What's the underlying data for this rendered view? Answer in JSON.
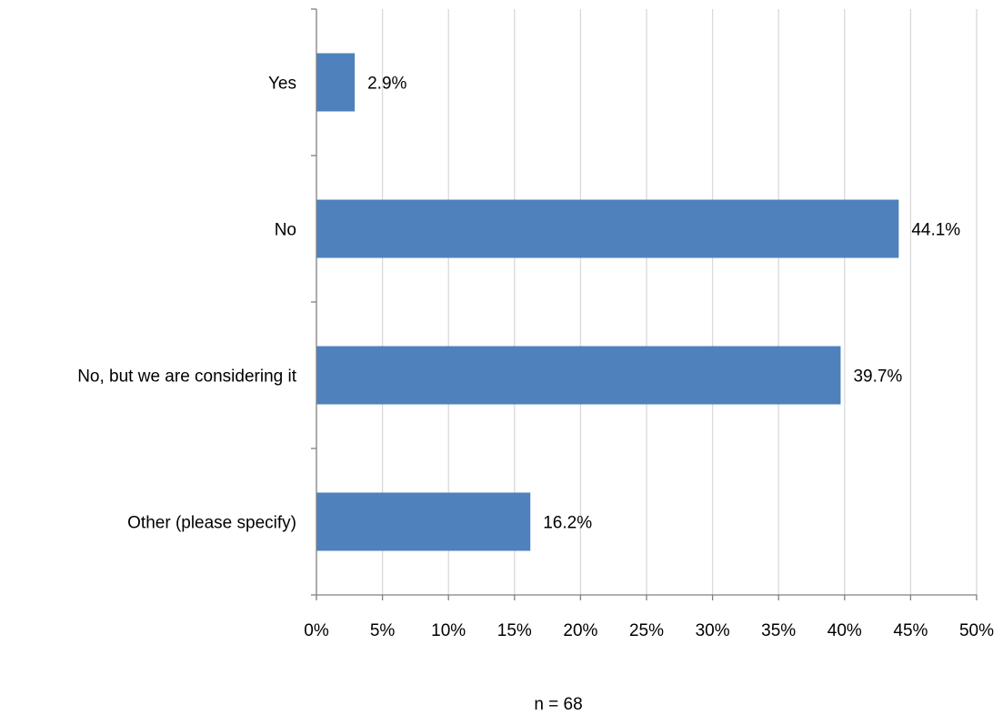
{
  "chart_data": {
    "type": "bar",
    "orientation": "horizontal",
    "categories": [
      "Yes",
      "No",
      "No, but we are considering it",
      "Other (please specify)"
    ],
    "values": [
      2.9,
      44.1,
      39.7,
      16.2
    ],
    "data_labels": [
      "2.9%",
      "44.1%",
      "39.7%",
      "16.2%"
    ],
    "x_ticks": [
      "0%",
      "5%",
      "10%",
      "15%",
      "20%",
      "25%",
      "30%",
      "35%",
      "40%",
      "45%",
      "50%"
    ],
    "xlim": [
      0,
      50
    ],
    "grid": true,
    "bar_color": "#4f81bd",
    "grid_color": "#d9d9d9",
    "axis_color": "#808080",
    "note": "n = 68"
  }
}
